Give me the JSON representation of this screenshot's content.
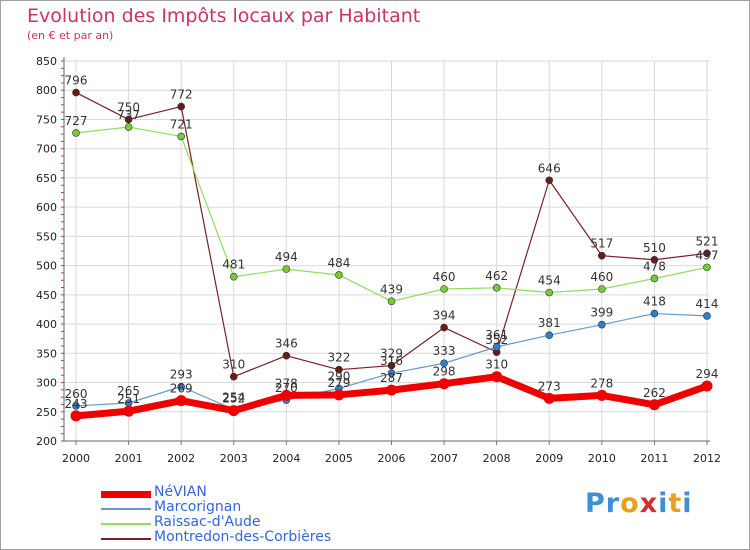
{
  "title": "Evolution des Impôts locaux par Habitant",
  "subtitle": "(en € et par an)",
  "logo": {
    "text": "Proxiti",
    "letter_colors": [
      "#3d8fd6",
      "#3d8fd6",
      "#e8a020",
      "#d03030",
      "#3d8fd6",
      "#e8a020",
      "#3d8fd6"
    ]
  },
  "chart_data": {
    "type": "line",
    "title": "Evolution des Impôts locaux par Habitant",
    "subtitle": "(en € et par an)",
    "xlabel": "",
    "ylabel": "",
    "x": [
      "2000",
      "2001",
      "2002",
      "2003",
      "2004",
      "2005",
      "2006",
      "2007",
      "2008",
      "2009",
      "2010",
      "2011",
      "2012"
    ],
    "ylim": [
      200,
      850
    ],
    "yticks": [
      200,
      250,
      300,
      350,
      400,
      450,
      500,
      550,
      600,
      650,
      700,
      750,
      800,
      850
    ],
    "grid": true,
    "legend_position": "bottom-left",
    "series": [
      {
        "name": "Montredon-des-Corbières",
        "color": "#7a1f28",
        "line_width": 1.2,
        "marker_fill": "#6b1a1a",
        "values": [
          796,
          750,
          772,
          310,
          346,
          322,
          329,
          394,
          352,
          646,
          517,
          510,
          521
        ]
      },
      {
        "name": "Raissac-d'Aude",
        "color": "#90dd60",
        "line_width": 1.2,
        "marker_fill": "#77cc33",
        "values": [
          727,
          737,
          721,
          481,
          494,
          484,
          439,
          460,
          462,
          454,
          460,
          478,
          497
        ]
      },
      {
        "name": "Marcorignan",
        "color": "#6699cc",
        "line_width": 1.2,
        "marker_fill": "#2f7fcc",
        "values": [
          260,
          265,
          293,
          254,
          270,
          290,
          316,
          333,
          361,
          381,
          399,
          418,
          414
        ]
      },
      {
        "name": "NéVIAN",
        "color": "#ee0000",
        "line_width": 7,
        "marker_fill": "#ee0000",
        "values": [
          243,
          251,
          269,
          252,
          278,
          279,
          287,
          298,
          310,
          273,
          278,
          262,
          294
        ]
      }
    ],
    "legend_order": [
      "NéVIAN",
      "Marcorignan",
      "Raissac-d'Aude",
      "Montredon-des-Corbières"
    ]
  }
}
